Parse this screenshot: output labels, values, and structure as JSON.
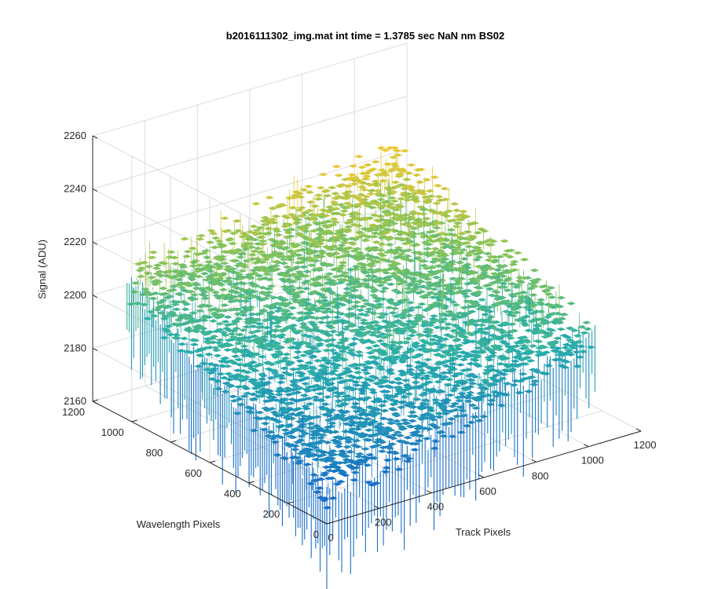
{
  "chart_data": {
    "type": "surface",
    "title": "b2016111302_img.mat int time = 1.3785 sec  NaN nm BS02",
    "xlabel": "Track Pixels",
    "ylabel": "Wavelength Pixels",
    "zlabel": "Signal (ADU)",
    "xlim": [
      0,
      1200
    ],
    "ylim": [
      0,
      1200
    ],
    "zlim": [
      2160,
      2260
    ],
    "x_ticks": [
      "0",
      "200",
      "400",
      "600",
      "800",
      "1000",
      "1200"
    ],
    "y_ticks": [
      "0",
      "200",
      "400",
      "600",
      "800",
      "1000",
      "1200"
    ],
    "z_ticks": [
      "2160",
      "2180",
      "2200",
      "2220",
      "2240",
      "2260"
    ],
    "surface_extent": {
      "x": [
        0,
        1024
      ],
      "y": [
        0,
        1024
      ]
    },
    "surface_levels": {
      "front_corner": 2172,
      "left_corner": 2212,
      "right_corner": 2200,
      "back_corner": 2228,
      "noise_amplitude": 12
    },
    "grid": true,
    "colormap": "parula",
    "colors": {
      "low": "#1f77c8",
      "mid": "#2cb5a5",
      "high": "#e6c83c"
    }
  }
}
